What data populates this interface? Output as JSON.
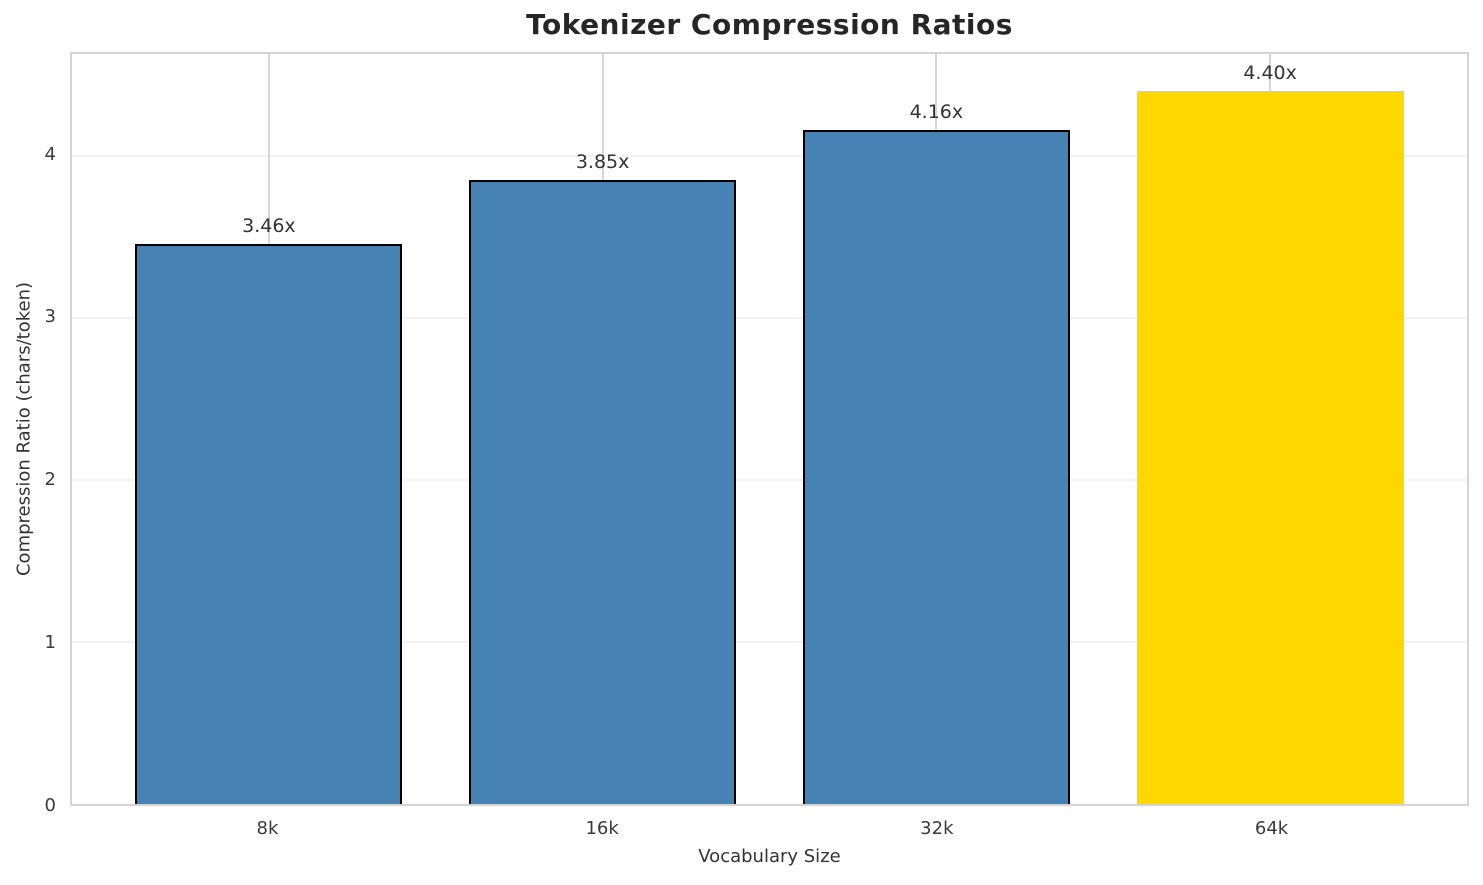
{
  "chart_data": {
    "type": "bar",
    "title": "Tokenizer Compression Ratios",
    "xlabel": "Vocabulary Size",
    "ylabel": "Compression Ratio (chars/token)",
    "categories": [
      "8k",
      "16k",
      "32k",
      "64k"
    ],
    "values": [
      3.46,
      3.85,
      4.16,
      4.4
    ],
    "bar_labels": [
      "3.46x",
      "3.85x",
      "4.16x",
      "4.40x"
    ],
    "y_ticks": [
      0,
      1,
      2,
      3,
      4
    ],
    "ylim": [
      0,
      4.63
    ],
    "grid": "both",
    "legend": "none",
    "highlight_index": 3,
    "colors": {
      "bar": "#4682B4",
      "highlight_bar": "#FFD700",
      "bar_edge": "#000000"
    }
  }
}
